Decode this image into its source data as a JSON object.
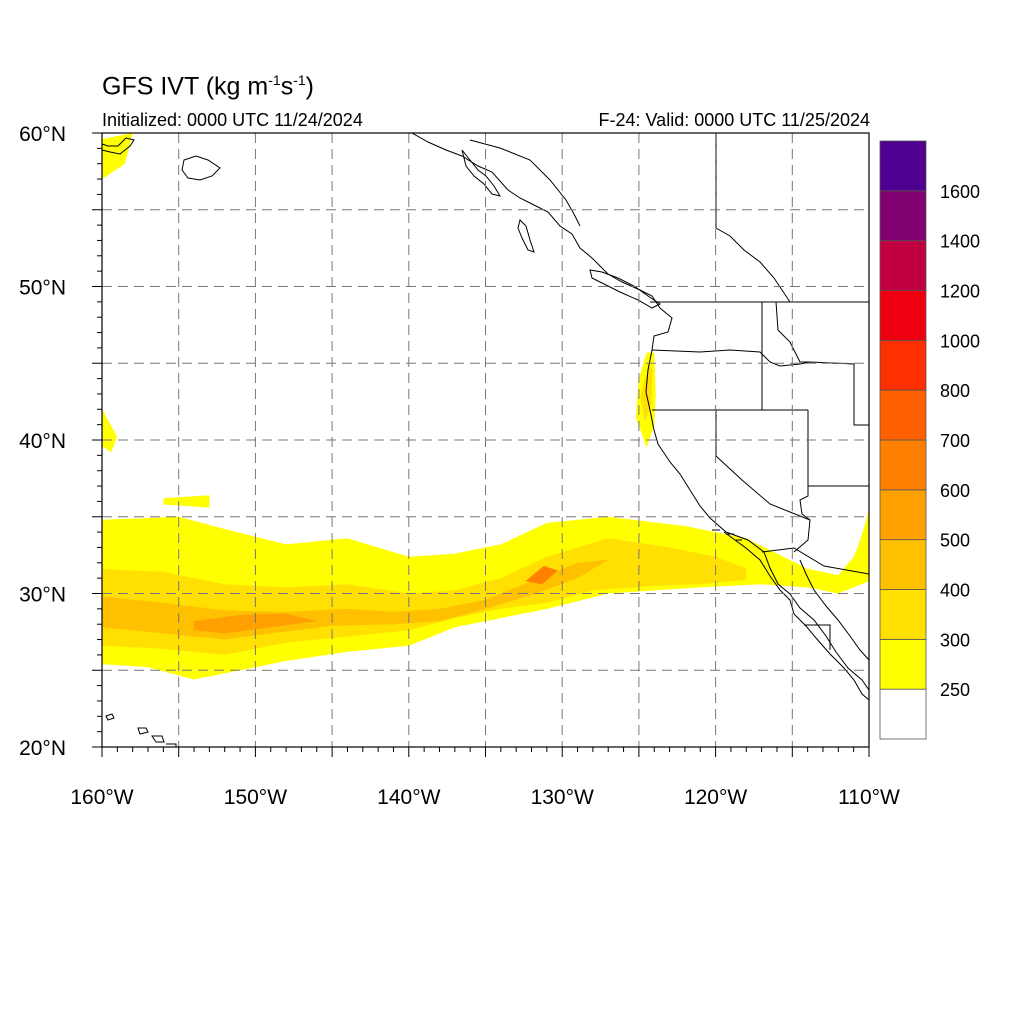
{
  "header": {
    "title_prefix": "GFS IVT (kg m",
    "title_exp1": "-1",
    "title_mid": "s",
    "title_exp2": "-1",
    "title_suffix": ")",
    "initialized": "Initialized: 0000 UTC 11/24/2024",
    "valid": "F-24: Valid: 0000 UTC 11/25/2024"
  },
  "map": {
    "lon_range": [
      -160,
      -110
    ],
    "lat_range": [
      20,
      60
    ],
    "grid": "dashed",
    "lat_labels": [
      {
        "value": 60,
        "text": "60°N"
      },
      {
        "value": 50,
        "text": "50°N"
      },
      {
        "value": 40,
        "text": "40°N"
      },
      {
        "value": 30,
        "text": "30°N"
      },
      {
        "value": 20,
        "text": "20°N"
      }
    ],
    "lon_labels": [
      {
        "value": -160,
        "text": "160°W"
      },
      {
        "value": -150,
        "text": "150°W"
      },
      {
        "value": -140,
        "text": "140°W"
      },
      {
        "value": -130,
        "text": "130°W"
      },
      {
        "value": -120,
        "text": "120°W"
      },
      {
        "value": -110,
        "text": "110°W"
      }
    ],
    "ivt_fields": [
      {
        "level": 250,
        "color": "#ffff00",
        "points": [
          [
            -160,
            34.8
          ],
          [
            -155,
            35
          ],
          [
            -152,
            34.2
          ],
          [
            -148,
            33.2
          ],
          [
            -144,
            33.6
          ],
          [
            -140,
            32.4
          ],
          [
            -137,
            32.6
          ],
          [
            -134,
            33.2
          ],
          [
            -131,
            34.6
          ],
          [
            -127,
            35
          ],
          [
            -122,
            34.4
          ],
          [
            -118,
            33.6
          ],
          [
            -116,
            32.6
          ],
          [
            -114,
            31.6
          ],
          [
            -112,
            31.2
          ],
          [
            -111,
            32.4
          ],
          [
            -110.6,
            33.4
          ],
          [
            -110,
            35.4
          ],
          [
            -110,
            30.8
          ],
          [
            -112,
            30
          ],
          [
            -114,
            30.4
          ],
          [
            -117,
            30.6
          ],
          [
            -121,
            30.4
          ],
          [
            -124,
            30.2
          ],
          [
            -127,
            30
          ],
          [
            -131,
            29
          ],
          [
            -134,
            28.4
          ],
          [
            -137,
            27.8
          ],
          [
            -140,
            26.6
          ],
          [
            -144,
            26.2
          ],
          [
            -148,
            25.6
          ],
          [
            -151,
            25
          ],
          [
            -154,
            24.4
          ],
          [
            -157,
            25.2
          ],
          [
            -160,
            25.4
          ]
        ]
      },
      {
        "level": 300,
        "color": "#ffe000",
        "points": [
          [
            -160,
            31.6
          ],
          [
            -156,
            31.4
          ],
          [
            -152,
            30.6
          ],
          [
            -148,
            30.4
          ],
          [
            -144,
            30.6
          ],
          [
            -140,
            30
          ],
          [
            -137,
            30.2
          ],
          [
            -134,
            31
          ],
          [
            -131,
            32.4
          ],
          [
            -127,
            33.6
          ],
          [
            -123,
            33
          ],
          [
            -120,
            32.4
          ],
          [
            -118,
            31.6
          ],
          [
            -118,
            30.9
          ],
          [
            -121,
            30.6
          ],
          [
            -124,
            30.5
          ],
          [
            -128,
            30.2
          ],
          [
            -131,
            29.4
          ],
          [
            -134,
            29
          ],
          [
            -137,
            28.4
          ],
          [
            -140,
            27.6
          ],
          [
            -144,
            27.2
          ],
          [
            -148,
            26.8
          ],
          [
            -152,
            26
          ],
          [
            -156,
            26.4
          ],
          [
            -160,
            26.6
          ]
        ]
      },
      {
        "level": 400,
        "color": "#ffc000",
        "points": [
          [
            -160,
            29.8
          ],
          [
            -156,
            29.4
          ],
          [
            -152,
            28.9
          ],
          [
            -148,
            28.8
          ],
          [
            -144,
            29
          ],
          [
            -141,
            28.8
          ],
          [
            -138,
            29
          ],
          [
            -135,
            29.6
          ],
          [
            -132,
            30.8
          ],
          [
            -129,
            32
          ],
          [
            -127,
            32.2
          ],
          [
            -129,
            31
          ],
          [
            -132,
            29.9
          ],
          [
            -135,
            29
          ],
          [
            -138,
            28.2
          ],
          [
            -141,
            28
          ],
          [
            -145,
            27.9
          ],
          [
            -149,
            27.4
          ],
          [
            -152,
            27
          ],
          [
            -156,
            27.4
          ],
          [
            -160,
            27.8
          ]
        ]
      },
      {
        "level": 500,
        "color": "#ffa000",
        "points": [
          [
            -154,
            28.2
          ],
          [
            -151,
            28.6
          ],
          [
            -148,
            28.7
          ],
          [
            -146,
            28.2
          ],
          [
            -149,
            27.8
          ],
          [
            -152,
            27.4
          ],
          [
            -154,
            27.6
          ]
        ]
      },
      {
        "level": 600,
        "color": "#ff8000",
        "points": [
          [
            -132.4,
            30.8
          ],
          [
            -131.2,
            31.8
          ],
          [
            -130.3,
            31.5
          ],
          [
            -131.3,
            30.6
          ]
        ]
      },
      {
        "level": 250,
        "color": "#ffff00",
        "points": [
          [
            -124.5,
            45.7
          ],
          [
            -124,
            45.7
          ],
          [
            -123.9,
            43
          ],
          [
            -124,
            41
          ],
          [
            -124.5,
            39.5
          ],
          [
            -125.2,
            41.5
          ],
          [
            -125,
            44
          ]
        ]
      },
      {
        "level": 300,
        "color": "#ffe000",
        "points": [
          [
            -124.4,
            44.8
          ],
          [
            -124.1,
            44.6
          ],
          [
            -124.2,
            42.2
          ],
          [
            -124.6,
            41.2
          ],
          [
            -124.9,
            42.8
          ]
        ]
      },
      {
        "level": 250,
        "color": "#ffff00",
        "points": [
          [
            -160,
            59.6
          ],
          [
            -158,
            60
          ],
          [
            -158.5,
            58
          ],
          [
            -160,
            57
          ]
        ]
      },
      {
        "level": 250,
        "color": "#ffff00",
        "points": [
          [
            -160,
            42
          ],
          [
            -159,
            40.2
          ],
          [
            -159.4,
            39.2
          ],
          [
            -160,
            39.6
          ]
        ]
      },
      {
        "level": 250,
        "color": "#ffff00",
        "points": [
          [
            -156,
            36.2
          ],
          [
            -153,
            36.4
          ],
          [
            -153,
            35.6
          ],
          [
            -156,
            35.8
          ]
        ]
      }
    ],
    "colorbar": {
      "labels": [
        "250",
        "300",
        "400",
        "500",
        "600",
        "700",
        "800",
        "1000",
        "1200",
        "1400",
        "1600"
      ],
      "colors": [
        "#ffffff",
        "#ffff00",
        "#ffe000",
        "#ffc000",
        "#ffa000",
        "#ff8000",
        "#ff6000",
        "#ff3000",
        "#ee0010",
        "#c00040",
        "#800070",
        "#500090"
      ]
    }
  }
}
